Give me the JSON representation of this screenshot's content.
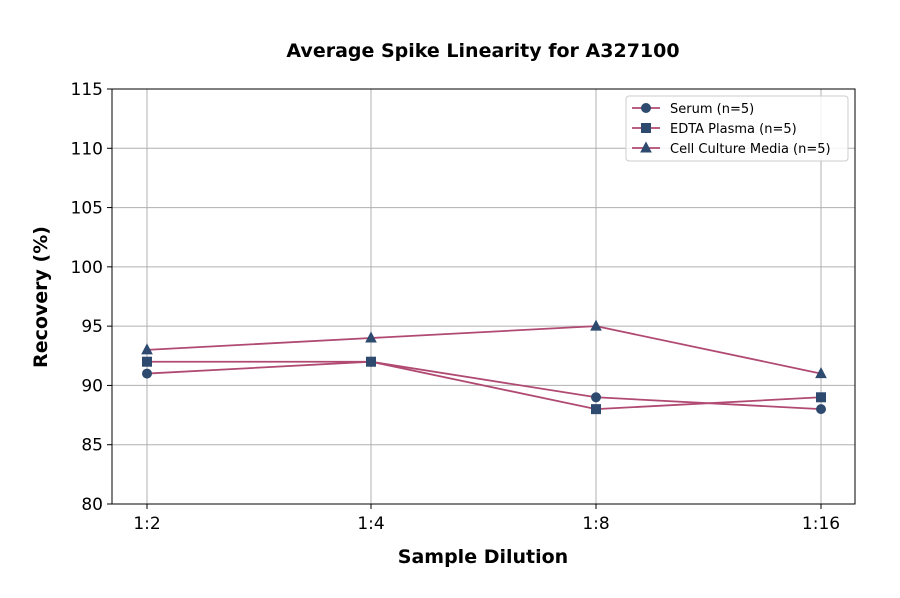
{
  "chart_data": {
    "type": "line",
    "title": "Average Spike Linearity for A327100",
    "xlabel": "Sample Dilution",
    "ylabel": "Recovery (%)",
    "categories": [
      "1:2",
      "1:4",
      "1:8",
      "1:16"
    ],
    "ylim": [
      80,
      115
    ],
    "yticks": [
      80,
      85,
      90,
      95,
      100,
      105,
      110,
      115
    ],
    "grid": true,
    "legend_position": "top-right",
    "line_color": "#b04a72",
    "marker_color": "#2e4a6f",
    "series": [
      {
        "name": "Serum (n=5)",
        "marker": "circle",
        "values": [
          91,
          92,
          89,
          88
        ]
      },
      {
        "name": "EDTA Plasma (n=5)",
        "marker": "square",
        "values": [
          92,
          92,
          88,
          89
        ]
      },
      {
        "name": "Cell Culture Media (n=5)",
        "marker": "triangle",
        "values": [
          93,
          94,
          95,
          91
        ]
      }
    ]
  }
}
